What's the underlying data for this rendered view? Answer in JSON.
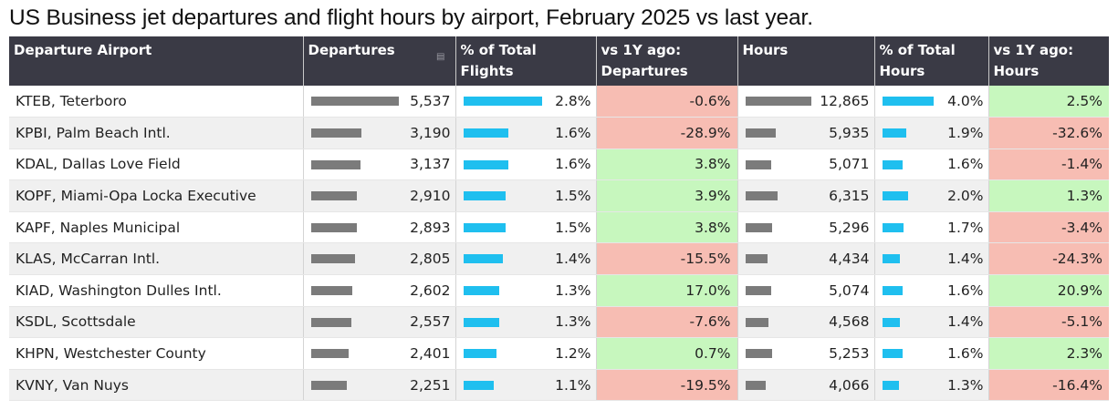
{
  "title": "US Business jet departures and flight hours by airport, February 2025 vs last year.",
  "chart_data": {
    "type": "table",
    "title": "US Business jet departures and flight hours by airport, February 2025 vs last year.",
    "columns": [
      "Departure Airport",
      "Departures",
      "% of Total Flights",
      "vs 1Y ago: Departures",
      "Hours",
      "% of Total Hours",
      "vs 1Y ago: Hours"
    ],
    "headers": [
      [
        "Departure Airport"
      ],
      [
        "Departures"
      ],
      [
        "% of Total",
        "Flights"
      ],
      [
        "vs 1Y ago:",
        "Departures"
      ],
      [
        "Hours"
      ],
      [
        "% of Total",
        "Hours"
      ],
      [
        "vs 1Y ago:",
        "Hours"
      ]
    ],
    "rows": [
      {
        "airport": "KTEB, Teterboro",
        "departures": 5537,
        "departures_label": "5,537",
        "pct_flights": 2.8,
        "pct_flights_label": "2.8%",
        "dep_change": -0.6,
        "dep_change_label": "-0.6%",
        "hours": 12865,
        "hours_label": "12,865",
        "pct_hours": 4.0,
        "pct_hours_label": "4.0%",
        "hours_change": 2.5,
        "hours_change_label": "2.5%"
      },
      {
        "airport": "KPBI, Palm Beach Intl.",
        "departures": 3190,
        "departures_label": "3,190",
        "pct_flights": 1.6,
        "pct_flights_label": "1.6%",
        "dep_change": -28.9,
        "dep_change_label": "-28.9%",
        "hours": 5935,
        "hours_label": "5,935",
        "pct_hours": 1.9,
        "pct_hours_label": "1.9%",
        "hours_change": -32.6,
        "hours_change_label": "-32.6%"
      },
      {
        "airport": "KDAL, Dallas Love Field",
        "departures": 3137,
        "departures_label": "3,137",
        "pct_flights": 1.6,
        "pct_flights_label": "1.6%",
        "dep_change": 3.8,
        "dep_change_label": "3.8%",
        "hours": 5071,
        "hours_label": "5,071",
        "pct_hours": 1.6,
        "pct_hours_label": "1.6%",
        "hours_change": -1.4,
        "hours_change_label": "-1.4%"
      },
      {
        "airport": "KOPF, Miami-Opa Locka Executive",
        "departures": 2910,
        "departures_label": "2,910",
        "pct_flights": 1.5,
        "pct_flights_label": "1.5%",
        "dep_change": 3.9,
        "dep_change_label": "3.9%",
        "hours": 6315,
        "hours_label": "6,315",
        "pct_hours": 2.0,
        "pct_hours_label": "2.0%",
        "hours_change": 1.3,
        "hours_change_label": "1.3%"
      },
      {
        "airport": "KAPF, Naples Municipal",
        "departures": 2893,
        "departures_label": "2,893",
        "pct_flights": 1.5,
        "pct_flights_label": "1.5%",
        "dep_change": 3.8,
        "dep_change_label": "3.8%",
        "hours": 5296,
        "hours_label": "5,296",
        "pct_hours": 1.7,
        "pct_hours_label": "1.7%",
        "hours_change": -3.4,
        "hours_change_label": "-3.4%"
      },
      {
        "airport": "KLAS, McCarran Intl.",
        "departures": 2805,
        "departures_label": "2,805",
        "pct_flights": 1.4,
        "pct_flights_label": "1.4%",
        "dep_change": -15.5,
        "dep_change_label": "-15.5%",
        "hours": 4434,
        "hours_label": "4,434",
        "pct_hours": 1.4,
        "pct_hours_label": "1.4%",
        "hours_change": -24.3,
        "hours_change_label": "-24.3%"
      },
      {
        "airport": "KIAD, Washington Dulles Intl.",
        "departures": 2602,
        "departures_label": "2,602",
        "pct_flights": 1.3,
        "pct_flights_label": "1.3%",
        "dep_change": 17.0,
        "dep_change_label": "17.0%",
        "hours": 5074,
        "hours_label": "5,074",
        "pct_hours": 1.6,
        "pct_hours_label": "1.6%",
        "hours_change": 20.9,
        "hours_change_label": "20.9%"
      },
      {
        "airport": "KSDL, Scottsdale",
        "departures": 2557,
        "departures_label": "2,557",
        "pct_flights": 1.3,
        "pct_flights_label": "1.3%",
        "dep_change": -7.6,
        "dep_change_label": "-7.6%",
        "hours": 4568,
        "hours_label": "4,568",
        "pct_hours": 1.4,
        "pct_hours_label": "1.4%",
        "hours_change": -5.1,
        "hours_change_label": "-5.1%"
      },
      {
        "airport": "KHPN, Westchester County",
        "departures": 2401,
        "departures_label": "2,401",
        "pct_flights": 1.2,
        "pct_flights_label": "1.2%",
        "dep_change": 0.7,
        "dep_change_label": "0.7%",
        "hours": 5253,
        "hours_label": "5,253",
        "pct_hours": 1.6,
        "pct_hours_label": "1.6%",
        "hours_change": 2.3,
        "hours_change_label": "2.3%"
      },
      {
        "airport": "KVNY, Van Nuys",
        "departures": 2251,
        "departures_label": "2,251",
        "pct_flights": 1.1,
        "pct_flights_label": "1.1%",
        "dep_change": -19.5,
        "dep_change_label": "-19.5%",
        "hours": 4066,
        "hours_label": "4,066",
        "pct_hours": 1.3,
        "pct_hours_label": "1.3%",
        "hours_change": -16.4,
        "hours_change_label": "-16.4%"
      }
    ],
    "colors": {
      "header_bg": "#3a3a45",
      "count_bar": "#7b7b7b",
      "share_bar": "#1fbfef",
      "positive_cell": "#c7f7be",
      "negative_cell": "#f7bdb3"
    }
  }
}
